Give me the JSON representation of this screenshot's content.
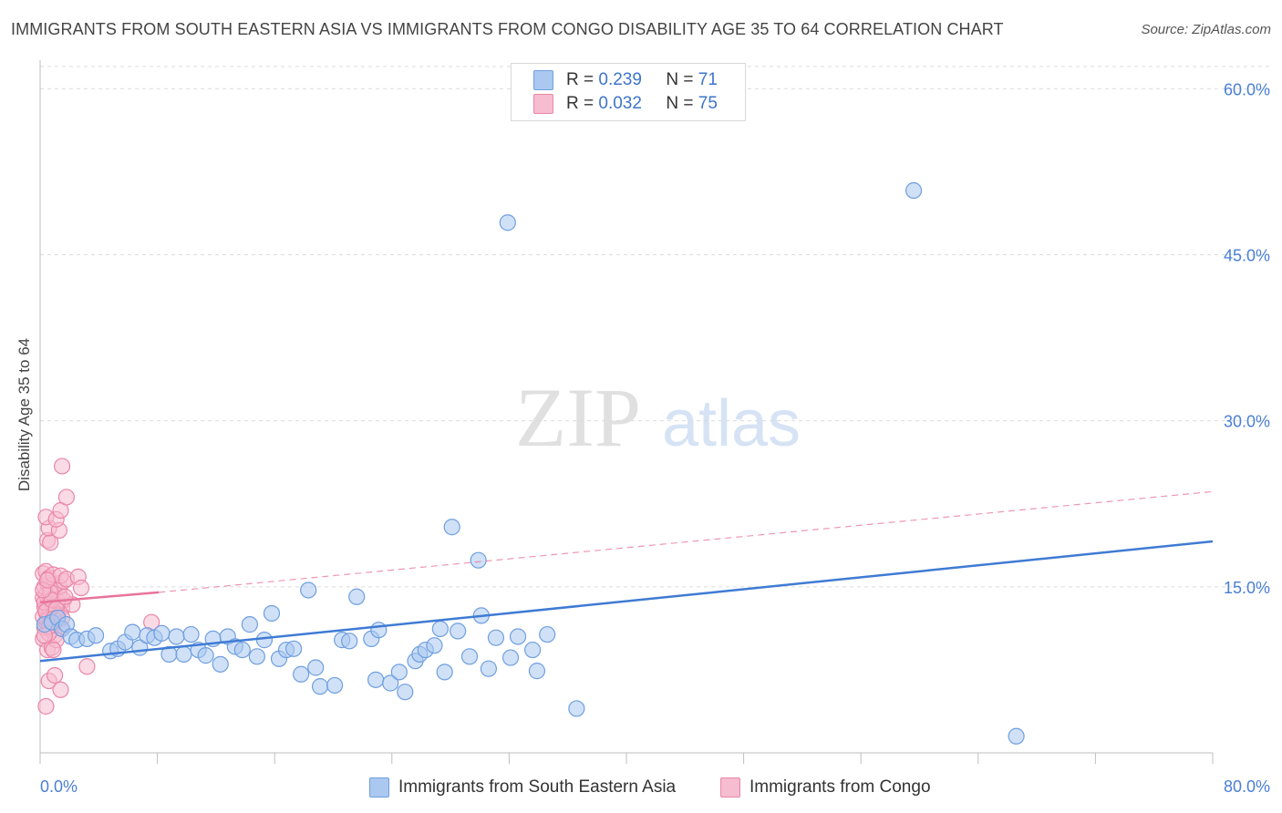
{
  "title": "IMMIGRANTS FROM SOUTH EASTERN ASIA VS IMMIGRANTS FROM CONGO DISABILITY AGE 35 TO 64 CORRELATION CHART",
  "source": "Source: ZipAtlas.com",
  "watermark": {
    "zip": "ZIP",
    "atlas": "atlas"
  },
  "legend": {
    "r_label": "R =",
    "n_label": "N =",
    "series": [
      {
        "r": "0.239",
        "n": "71"
      },
      {
        "r": "0.032",
        "n": "75"
      }
    ]
  },
  "colors": {
    "blue_fill": "#aac8f0",
    "blue_stroke": "#6f9fdf",
    "blue_line": "#3f7bd4",
    "pink_fill": "#f6bcd0",
    "pink_stroke": "#ea86a8",
    "pink_line": "#e8739a"
  },
  "chart_data": {
    "type": "scatter",
    "ylabel": "Disability Age 35 to 64",
    "xlim": [
      0,
      80
    ],
    "ylim": [
      0,
      62
    ],
    "y_ticks": [
      {
        "value": 15,
        "label": "15.0%"
      },
      {
        "value": 30,
        "label": "30.0%"
      },
      {
        "value": 45,
        "label": "45.0%"
      },
      {
        "value": 60,
        "label": "60.0%"
      }
    ],
    "x_tick_labels": {
      "min": "0.0%",
      "max": "80.0%"
    },
    "x_tick_values": [
      0,
      8,
      16,
      24,
      32,
      40,
      48,
      56,
      64,
      72,
      80
    ],
    "series": [
      {
        "name": "Immigrants from South Eastern Asia",
        "color": "blue",
        "trend": {
          "x0": 0,
          "y0": 8.3,
          "x1": 80,
          "y1": 19.1,
          "dashed_x1": 80
        },
        "points": [
          [
            0.3,
            11.6
          ],
          [
            0.8,
            11.8
          ],
          [
            1.2,
            12.2
          ],
          [
            1.5,
            11.2
          ],
          [
            1.8,
            11.6
          ],
          [
            2.1,
            10.5
          ],
          [
            2.5,
            10.2
          ],
          [
            3.2,
            10.3
          ],
          [
            3.8,
            10.6
          ],
          [
            4.8,
            9.2
          ],
          [
            5.3,
            9.4
          ],
          [
            5.8,
            10.0
          ],
          [
            6.3,
            10.9
          ],
          [
            6.8,
            9.5
          ],
          [
            7.3,
            10.6
          ],
          [
            7.8,
            10.4
          ],
          [
            8.3,
            10.8
          ],
          [
            8.8,
            8.9
          ],
          [
            9.3,
            10.5
          ],
          [
            9.8,
            8.9
          ],
          [
            10.3,
            10.7
          ],
          [
            10.8,
            9.3
          ],
          [
            11.3,
            8.8
          ],
          [
            11.8,
            10.3
          ],
          [
            12.3,
            8.0
          ],
          [
            12.8,
            10.5
          ],
          [
            13.3,
            9.6
          ],
          [
            13.8,
            9.3
          ],
          [
            14.3,
            11.6
          ],
          [
            14.8,
            8.7
          ],
          [
            15.3,
            10.2
          ],
          [
            15.8,
            12.6
          ],
          [
            16.3,
            8.5
          ],
          [
            16.8,
            9.3
          ],
          [
            17.3,
            9.4
          ],
          [
            17.8,
            7.1
          ],
          [
            18.3,
            14.7
          ],
          [
            18.8,
            7.7
          ],
          [
            19.1,
            6.0
          ],
          [
            20.1,
            6.1
          ],
          [
            20.6,
            10.2
          ],
          [
            21.1,
            10.1
          ],
          [
            21.6,
            14.1
          ],
          [
            22.6,
            10.3
          ],
          [
            23.1,
            11.1
          ],
          [
            22.9,
            6.6
          ],
          [
            23.9,
            6.3
          ],
          [
            24.5,
            7.3
          ],
          [
            24.9,
            5.5
          ],
          [
            25.6,
            8.3
          ],
          [
            25.9,
            8.9
          ],
          [
            26.3,
            9.3
          ],
          [
            26.9,
            9.7
          ],
          [
            27.3,
            11.2
          ],
          [
            27.6,
            7.3
          ],
          [
            28.1,
            20.4
          ],
          [
            28.5,
            11.0
          ],
          [
            29.3,
            8.7
          ],
          [
            29.9,
            17.4
          ],
          [
            30.1,
            12.4
          ],
          [
            30.6,
            7.6
          ],
          [
            31.1,
            10.4
          ],
          [
            31.9,
            47.9
          ],
          [
            32.1,
            8.6
          ],
          [
            32.6,
            10.5
          ],
          [
            33.6,
            9.3
          ],
          [
            33.9,
            7.4
          ],
          [
            34.6,
            10.7
          ],
          [
            36.6,
            4.0
          ],
          [
            59.6,
            50.8
          ],
          [
            66.6,
            1.5
          ]
        ]
      },
      {
        "name": "Immigrants from Congo",
        "color": "pink",
        "trend": {
          "x0": 0,
          "y0": 13.6,
          "x1": 8.1,
          "y1": 14.5,
          "dashed_x1": 80,
          "dashed_y1": 23.6
        },
        "points": [
          [
            0.4,
            4.2
          ],
          [
            0.6,
            6.5
          ],
          [
            1.0,
            7.0
          ],
          [
            1.4,
            5.7
          ],
          [
            3.2,
            7.8
          ],
          [
            0.2,
            10.3
          ],
          [
            0.5,
            9.3
          ],
          [
            0.8,
            9.5
          ],
          [
            1.0,
            10.6
          ],
          [
            0.3,
            11.3
          ],
          [
            0.4,
            11.8
          ],
          [
            0.7,
            11.1
          ],
          [
            0.9,
            11.6
          ],
          [
            1.2,
            12.0
          ],
          [
            1.4,
            11.3
          ],
          [
            0.2,
            12.3
          ],
          [
            0.4,
            12.7
          ],
          [
            0.6,
            12.2
          ],
          [
            0.8,
            12.7
          ],
          [
            1.1,
            12.9
          ],
          [
            0.3,
            13.2
          ],
          [
            0.5,
            13.5
          ],
          [
            0.6,
            13.1
          ],
          [
            0.9,
            13.3
          ],
          [
            1.2,
            13.6
          ],
          [
            1.5,
            13.1
          ],
          [
            0.2,
            14.0
          ],
          [
            0.4,
            14.3
          ],
          [
            0.7,
            13.9
          ],
          [
            1.0,
            14.2
          ],
          [
            1.3,
            14.4
          ],
          [
            1.6,
            13.8
          ],
          [
            0.3,
            15.0
          ],
          [
            0.5,
            15.3
          ],
          [
            0.7,
            14.8
          ],
          [
            1.0,
            15.2
          ],
          [
            1.3,
            15.0
          ],
          [
            1.6,
            15.5
          ],
          [
            0.2,
            16.2
          ],
          [
            0.4,
            16.4
          ],
          [
            0.6,
            15.8
          ],
          [
            0.9,
            16.1
          ],
          [
            1.4,
            16.0
          ],
          [
            1.8,
            15.7
          ],
          [
            2.2,
            13.4
          ],
          [
            2.6,
            15.9
          ],
          [
            2.8,
            14.9
          ],
          [
            1.1,
            10.2
          ],
          [
            0.6,
            10.8
          ],
          [
            0.5,
            19.2
          ],
          [
            0.7,
            19.0
          ],
          [
            0.6,
            20.3
          ],
          [
            1.3,
            20.1
          ],
          [
            0.4,
            21.3
          ],
          [
            1.1,
            21.1
          ],
          [
            1.4,
            21.9
          ],
          [
            1.8,
            23.1
          ],
          [
            1.5,
            25.9
          ],
          [
            7.6,
            11.8
          ],
          [
            0.9,
            9.3
          ],
          [
            0.3,
            13.6
          ],
          [
            0.5,
            12.0
          ],
          [
            0.7,
            14.5
          ],
          [
            1.0,
            11.9
          ],
          [
            1.2,
            12.4
          ],
          [
            0.4,
            12.8
          ],
          [
            0.8,
            13.8
          ],
          [
            0.2,
            14.7
          ],
          [
            0.5,
            15.6
          ],
          [
            1.1,
            13.0
          ],
          [
            0.9,
            12.1
          ],
          [
            0.6,
            11.4
          ],
          [
            1.5,
            12.2
          ],
          [
            0.3,
            10.6
          ],
          [
            1.7,
            14.1
          ]
        ]
      }
    ]
  }
}
